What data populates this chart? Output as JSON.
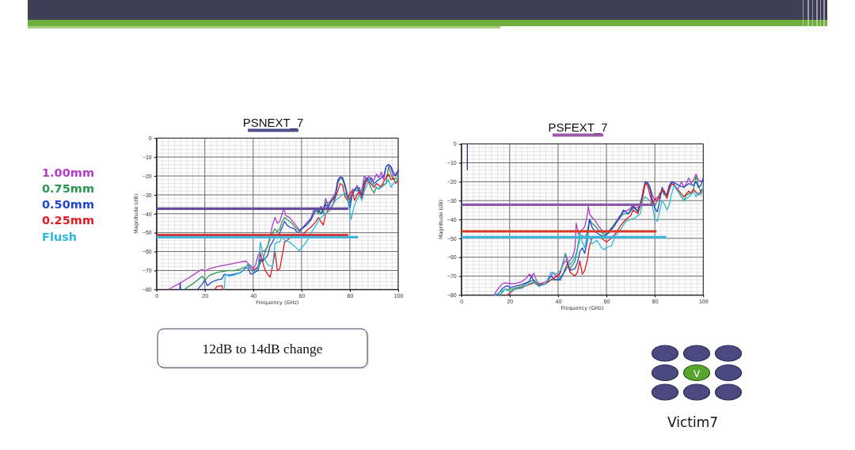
{
  "chart_data": [
    {
      "type": "line",
      "title": "PSNEXT_7",
      "xlabel": "Frequency (GHz)",
      "ylabel": "Magnitude (dB)",
      "xlim": [
        0,
        100
      ],
      "xticks": [
        0,
        20,
        40,
        60,
        80,
        100
      ],
      "ylim": [
        -80,
        0
      ],
      "yticks": [
        {
          "value": -80,
          "label": "−80"
        },
        {
          "value": -70,
          "label": "−70"
        },
        {
          "value": -60,
          "label": "−60"
        },
        {
          "value": -50,
          "label": "−50"
        },
        {
          "value": -40,
          "label": "−40"
        },
        {
          "value": -30,
          "label": "−30"
        },
        {
          "value": -20,
          "label": "−20"
        },
        {
          "value": -10,
          "label": "−10"
        },
        0
      ],
      "grid": true,
      "legend": "left",
      "annotations": [
        "12dB to 14dB change"
      ],
      "series": [
        {
          "name": "1.00mm",
          "color": "#b43cc8",
          "x": [
            5,
            10,
            15,
            18,
            19,
            20,
            22,
            25,
            30,
            35,
            37,
            38,
            39,
            40,
            41,
            42,
            43,
            45,
            46,
            47,
            48,
            49,
            50,
            51,
            52,
            52.6,
            53.5,
            55,
            57,
            59,
            60,
            62,
            64,
            65,
            66,
            67,
            68,
            69,
            70,
            71,
            72,
            74,
            75,
            76,
            77,
            78,
            79,
            80,
            81,
            82,
            83,
            84,
            85,
            86,
            87,
            88,
            89,
            90,
            91,
            92,
            93,
            94,
            95,
            96,
            97,
            98,
            99,
            100
          ],
          "values": [
            -80,
            -76.5,
            -72.5,
            -70,
            -69.5,
            -70.3,
            -69,
            -68,
            -66.7,
            -65.5,
            -65,
            -66.5,
            -67.5,
            -69,
            -67,
            -62,
            -60,
            -59.5,
            -57,
            -52,
            -46,
            -42,
            -45,
            -44,
            -40,
            -37,
            -41,
            -42,
            -45,
            -48.5,
            -48,
            -45,
            -42,
            -38,
            -37,
            -39,
            -36,
            -38,
            -32,
            -36,
            -33,
            -29,
            -22,
            -20.5,
            -21,
            -25,
            -30,
            -33,
            -27,
            -28,
            -25,
            -30,
            -27,
            -20,
            -22,
            -20,
            -23,
            -22,
            -19,
            -21,
            -18,
            -22,
            -15,
            -14,
            -16,
            -20,
            -19,
            -17
          ]
        },
        {
          "name": "0.75mm",
          "color": "#2a9a50",
          "x": [
            11.5,
            15,
            19,
            20,
            22,
            25,
            30,
            32,
            35,
            37,
            38,
            39,
            40,
            42,
            44,
            45,
            46,
            47,
            48,
            49,
            50,
            51,
            52,
            53,
            54,
            56,
            58,
            59,
            60,
            62,
            64,
            66,
            67,
            68,
            69,
            70,
            72,
            74,
            75,
            76,
            77,
            78,
            79,
            80,
            81,
            82,
            83,
            84,
            85,
            86,
            87,
            88,
            89,
            90,
            91,
            92,
            93,
            95,
            96,
            97,
            98,
            99,
            100
          ],
          "values": [
            -80,
            -77,
            -73,
            -75,
            -72.5,
            -71,
            -70,
            -70.2,
            -69,
            -68,
            -66.5,
            -69,
            -70,
            -68,
            -64,
            -60,
            -57,
            -53,
            -50,
            -48,
            -49.5,
            -48,
            -44,
            -42,
            -43,
            -45,
            -48,
            -49,
            -48,
            -46,
            -43,
            -38,
            -40,
            -37,
            -40,
            -34,
            -34,
            -30,
            -24,
            -21,
            -22,
            -26,
            -30,
            -34,
            -30,
            -27,
            -28,
            -26,
            -31,
            -24,
            -22,
            -24,
            -27,
            -29,
            -26,
            -27,
            -25,
            -24,
            -15,
            -19,
            -22,
            -21,
            -22
          ]
        },
        {
          "name": "0.50mm",
          "color": "#2048d0",
          "x": [
            17,
            19,
            20,
            21,
            23,
            25,
            27,
            28,
            30,
            32,
            35,
            37,
            38,
            39,
            40,
            42,
            43,
            44,
            46,
            47,
            48,
            49,
            50,
            51,
            52,
            53,
            54,
            55,
            57,
            58,
            59,
            60,
            62,
            64,
            65,
            66,
            67,
            68,
            70,
            71,
            72,
            74,
            75,
            76,
            77,
            78,
            79,
            80,
            81,
            82,
            83,
            84,
            85,
            86,
            87,
            88,
            89,
            90,
            92,
            94,
            95,
            96,
            97,
            98,
            99,
            100
          ],
          "values": [
            -80,
            -77,
            -75,
            -78,
            -76,
            -75,
            -74.5,
            -72,
            -72.5,
            -72,
            -71,
            -68.5,
            -69,
            -72,
            -71.5,
            -70,
            -64,
            -65,
            -62,
            -57,
            -55,
            -52,
            -53,
            -50,
            -47,
            -44,
            -46,
            -47,
            -48,
            -49.5,
            -50,
            -48,
            -46,
            -43,
            -40,
            -37,
            -38,
            -40,
            -35,
            -37,
            -34,
            -31,
            -23,
            -20.5,
            -21,
            -25,
            -32,
            -37,
            -30,
            -27,
            -26,
            -28,
            -30,
            -23,
            -21,
            -22,
            -21,
            -24,
            -22,
            -20,
            -15,
            -14,
            -15,
            -18,
            -20,
            -17
          ]
        },
        {
          "color": "#2048d0",
          "x": [
            9.6,
            9.8,
            10
          ],
          "values": [
            -80,
            -76.5,
            -80
          ]
        },
        {
          "name": "0.25mm",
          "color": "#e01c24",
          "x": [
            38,
            40,
            42,
            43,
            44,
            45,
            46,
            47,
            48,
            49,
            50,
            51,
            52,
            53,
            54,
            55,
            56,
            58,
            60,
            62,
            64,
            66,
            67,
            68,
            69,
            70,
            71,
            72,
            73,
            75,
            76,
            77,
            78,
            79,
            80,
            81,
            82,
            83,
            84,
            85,
            86,
            87,
            88,
            90,
            91,
            93,
            94,
            95,
            96,
            97,
            98,
            99,
            100
          ],
          "values": [
            -68,
            -70,
            -68,
            -61,
            -66,
            -70,
            -72,
            -73.5,
            -68,
            -60,
            -70,
            -69,
            -62,
            -55,
            -54,
            -53,
            -51,
            -51,
            -52,
            -49,
            -47,
            -44,
            -42,
            -44,
            -46,
            -40,
            -38,
            -37,
            -35,
            -28,
            -24,
            -25,
            -31,
            -33,
            -29,
            -28,
            -33,
            -30,
            -28,
            -32,
            -26,
            -22,
            -23,
            -26,
            -24,
            -26,
            -23,
            -21,
            -19,
            -22,
            -21,
            -24,
            -22
          ]
        },
        {
          "color": "#e01c24",
          "x": [
            24,
            25,
            27,
            27.5
          ],
          "values": [
            -80,
            -78.5,
            -78,
            -80
          ]
        },
        {
          "name": "Flush",
          "color": "#30b8d8",
          "x": [
            28,
            28.5,
            30,
            32,
            35,
            37,
            38,
            40,
            42,
            43,
            44,
            46,
            48,
            49,
            50,
            51,
            52,
            53,
            55,
            57,
            59,
            60,
            62,
            64,
            66,
            68,
            70,
            72,
            74,
            76,
            78,
            79,
            80,
            80.5,
            81,
            82,
            84,
            85,
            86,
            88,
            90,
            92,
            94,
            95,
            96,
            97,
            98,
            100
          ],
          "values": [
            -80,
            -72,
            -73,
            -72.5,
            -71,
            -68,
            -67,
            -71,
            -69,
            -55,
            -62,
            -67,
            -68,
            -56,
            -55,
            -55,
            -52,
            -54,
            -55,
            -57,
            -59.5,
            -58,
            -55,
            -50,
            -46,
            -42,
            -40,
            -38,
            -33,
            -31,
            -29,
            -32,
            -39,
            -43,
            -40,
            -35,
            -30,
            -33,
            -28,
            -22,
            -25,
            -27,
            -25,
            -24,
            -22,
            -26,
            -24,
            -22
          ]
        },
        {
          "type": "line",
          "color": "#6a4c9c",
          "x": [
            0,
            79.3
          ],
          "values": [
            -37.3,
            -37.3
          ]
        },
        {
          "type": "line",
          "color": "#d8262a",
          "x": [
            0,
            79.3
          ],
          "values": [
            -51.3,
            -51.3
          ]
        },
        {
          "type": "line",
          "color": "#4ab4d4",
          "x": [
            0,
            83.4
          ],
          "values": [
            -52.4,
            -52.4
          ]
        }
      ]
    },
    {
      "type": "line",
      "title": "PSFEXT_7",
      "xlabel": "Frequency (GHz)",
      "ylabel": "Magnitude (dB)",
      "xlim": [
        0,
        100
      ],
      "xticks": [
        0,
        20,
        40,
        60,
        80,
        100
      ],
      "ylim": [
        -80,
        0
      ],
      "yticks": [
        {
          "value": -80,
          "label": "−80"
        },
        {
          "value": -70,
          "label": "−70"
        },
        {
          "value": -60,
          "label": "−60"
        },
        {
          "value": -50,
          "label": "−50"
        },
        {
          "value": -40,
          "label": "−40"
        },
        {
          "value": -30,
          "label": "−30"
        },
        {
          "value": -20,
          "label": "−20"
        },
        {
          "value": -10,
          "label": "−10"
        },
        0
      ],
      "grid": true,
      "annotations": [
        "Victim7",
        "V"
      ],
      "series": [
        {
          "color": "#b43cc8",
          "x": [
            13.5,
            15,
            17,
            18,
            20,
            22,
            25,
            27,
            28,
            29,
            30,
            31,
            32,
            35,
            37,
            38,
            40,
            42,
            43,
            44,
            46,
            47,
            47.5,
            48.5,
            49.5,
            51,
            52,
            52.5,
            53,
            54,
            55,
            57,
            59,
            61,
            63,
            65,
            67,
            69,
            70,
            71,
            72,
            74,
            75,
            76,
            77,
            78,
            79,
            80,
            81,
            82,
            83,
            84,
            85,
            86,
            87,
            88,
            89,
            90,
            91,
            92,
            93,
            94,
            95,
            96,
            97,
            98,
            99,
            100
          ],
          "values": [
            -80,
            -77,
            -74,
            -73.5,
            -74,
            -74,
            -73,
            -71,
            -69,
            -70,
            -68.5,
            -72,
            -74,
            -73,
            -70,
            -68,
            -71,
            -64,
            -62,
            -63,
            -60,
            -55,
            -42,
            -48,
            -46,
            -44,
            -38,
            -33,
            -37,
            -39,
            -40,
            -44,
            -47,
            -46,
            -43,
            -39,
            -36,
            -35,
            -34,
            -32,
            -34,
            -33,
            -25,
            -20,
            -20.5,
            -23,
            -27,
            -30,
            -28,
            -29,
            -24,
            -26,
            -27,
            -22,
            -20,
            -21,
            -24,
            -23,
            -20,
            -23,
            -21,
            -18,
            -21,
            -19,
            -16,
            -19,
            -20,
            -19
          ]
        },
        {
          "color": "#2a9a50",
          "x": [
            16,
            18,
            20,
            22,
            25,
            28,
            30,
            32,
            35,
            37,
            40,
            42,
            44,
            45,
            47,
            48,
            49,
            50,
            51,
            52,
            53,
            54,
            55,
            57,
            59,
            61,
            63,
            65,
            67,
            69,
            71,
            73,
            75,
            76,
            77,
            78,
            79,
            80,
            81,
            82,
            83,
            84,
            85,
            86,
            87,
            88,
            90,
            92,
            93,
            95,
            96,
            97,
            98,
            99,
            100
          ],
          "values": [
            -80,
            -77,
            -77,
            -76.5,
            -75.5,
            -73,
            -72,
            -74.5,
            -74,
            -72,
            -72,
            -69,
            -65,
            -66,
            -62,
            -56,
            -50,
            -48.5,
            -50,
            -47,
            -40,
            -42,
            -43,
            -46,
            -48,
            -47,
            -43,
            -40,
            -37,
            -37,
            -34,
            -35,
            -27,
            -21,
            -21,
            -24,
            -30,
            -33,
            -30,
            -26,
            -25,
            -27,
            -28,
            -23,
            -21,
            -22,
            -26,
            -30,
            -27,
            -26,
            -24,
            -17,
            -22,
            -26,
            -23
          ]
        },
        {
          "color": "#2048d0",
          "x": [
            15,
            17,
            19,
            20,
            22,
            25,
            28,
            29,
            30,
            32,
            35,
            37,
            39,
            41,
            43,
            44,
            45,
            47,
            48,
            49,
            50,
            51,
            52,
            53,
            54,
            55,
            57,
            59,
            61,
            63,
            65,
            67,
            69,
            71,
            73,
            75,
            76,
            77,
            78,
            79,
            80,
            81,
            82,
            83,
            84,
            85,
            86,
            87,
            88,
            90,
            92,
            94,
            96,
            97,
            98,
            99,
            100
          ],
          "values": [
            -80,
            -76.5,
            -75,
            -76,
            -75.5,
            -74.5,
            -73,
            -70,
            -73,
            -75,
            -74,
            -70,
            -72,
            -72,
            -66,
            -63,
            -67,
            -66,
            -63,
            -57,
            -55,
            -58,
            -52,
            -40,
            -44,
            -46,
            -48,
            -49,
            -47,
            -44,
            -40,
            -35,
            -37,
            -33,
            -36,
            -28,
            -20,
            -20.5,
            -23,
            -30,
            -34,
            -36,
            -30,
            -23,
            -26,
            -27,
            -22,
            -20,
            -20.5,
            -22,
            -23,
            -21,
            -22,
            -20,
            -23,
            -22,
            -18
          ]
        },
        {
          "color": "#e01c24",
          "x": [
            19,
            20,
            22,
            25,
            28,
            30,
            32,
            35,
            37,
            39,
            41,
            42,
            43,
            44,
            45,
            47,
            48,
            49,
            50,
            51,
            52,
            53,
            54,
            56,
            58,
            60,
            62,
            64,
            66,
            68,
            70,
            71,
            73,
            75,
            76,
            77,
            78,
            79,
            80,
            81,
            82,
            83,
            84,
            85,
            86,
            87,
            88,
            90,
            92,
            94,
            95,
            96,
            98,
            99,
            100
          ],
          "values": [
            -80,
            -79,
            -77,
            -76,
            -74.5,
            -73.5,
            -75,
            -74,
            -72,
            -70.5,
            -68,
            -63,
            -58,
            -64,
            -68,
            -70,
            -68,
            -62,
            -69,
            -67,
            -62,
            -54,
            -50,
            -49,
            -50,
            -52,
            -50,
            -47,
            -43,
            -40,
            -38,
            -35,
            -37,
            -28,
            -21,
            -22,
            -27,
            -32,
            -29,
            -30,
            -27,
            -24,
            -25,
            -29,
            -24,
            -21,
            -22,
            -25,
            -28,
            -25,
            -26,
            -24,
            -27,
            -25,
            -23
          ]
        },
        {
          "color": "#30b8d8",
          "x": [
            14,
            16,
            18,
            20,
            22,
            25,
            28,
            30,
            32,
            35,
            37,
            39,
            41,
            42,
            43,
            44,
            45,
            47,
            48,
            49,
            50,
            51,
            52,
            53,
            54,
            56,
            58,
            59,
            60,
            62,
            64,
            66,
            68,
            70,
            72,
            74,
            75,
            76,
            78,
            79,
            80,
            81,
            82,
            83,
            84,
            85,
            86,
            87,
            88,
            90,
            92,
            93,
            95,
            96,
            97,
            98,
            99,
            100
          ],
          "values": [
            -80,
            -78.5,
            -77,
            -78,
            -77,
            -76.5,
            -74,
            -73,
            -75.5,
            -74,
            -68,
            -69,
            -67,
            -63,
            -58,
            -61,
            -64,
            -60,
            -55,
            -47,
            -52,
            -55,
            -48,
            -49,
            -53,
            -51,
            -55,
            -56,
            -55,
            -54,
            -48,
            -45,
            -41,
            -40,
            -39,
            -37,
            -30,
            -28,
            -30,
            -33,
            -40,
            -41,
            -35,
            -30,
            -32,
            -35,
            -32,
            -26,
            -22,
            -26,
            -30,
            -29,
            -27,
            -25,
            -28,
            -26,
            -27,
            -23
          ]
        },
        {
          "type": "line",
          "color": "#8a5aa8",
          "x": [
            0,
            79.8
          ],
          "values": [
            -32.2,
            -32.2
          ]
        },
        {
          "type": "line",
          "color": "#d83a2a",
          "x": [
            0,
            80.7
          ],
          "values": [
            -46.3,
            -46.3
          ]
        },
        {
          "type": "line",
          "color": "#40b4d8",
          "x": [
            0,
            84.7
          ],
          "values": [
            -49.4,
            -49.4
          ]
        },
        {
          "type": "line",
          "color": "#33337a",
          "x": [
            2.5,
            2.5
          ],
          "values": [
            0,
            -13.6
          ]
        }
      ]
    }
  ]
}
